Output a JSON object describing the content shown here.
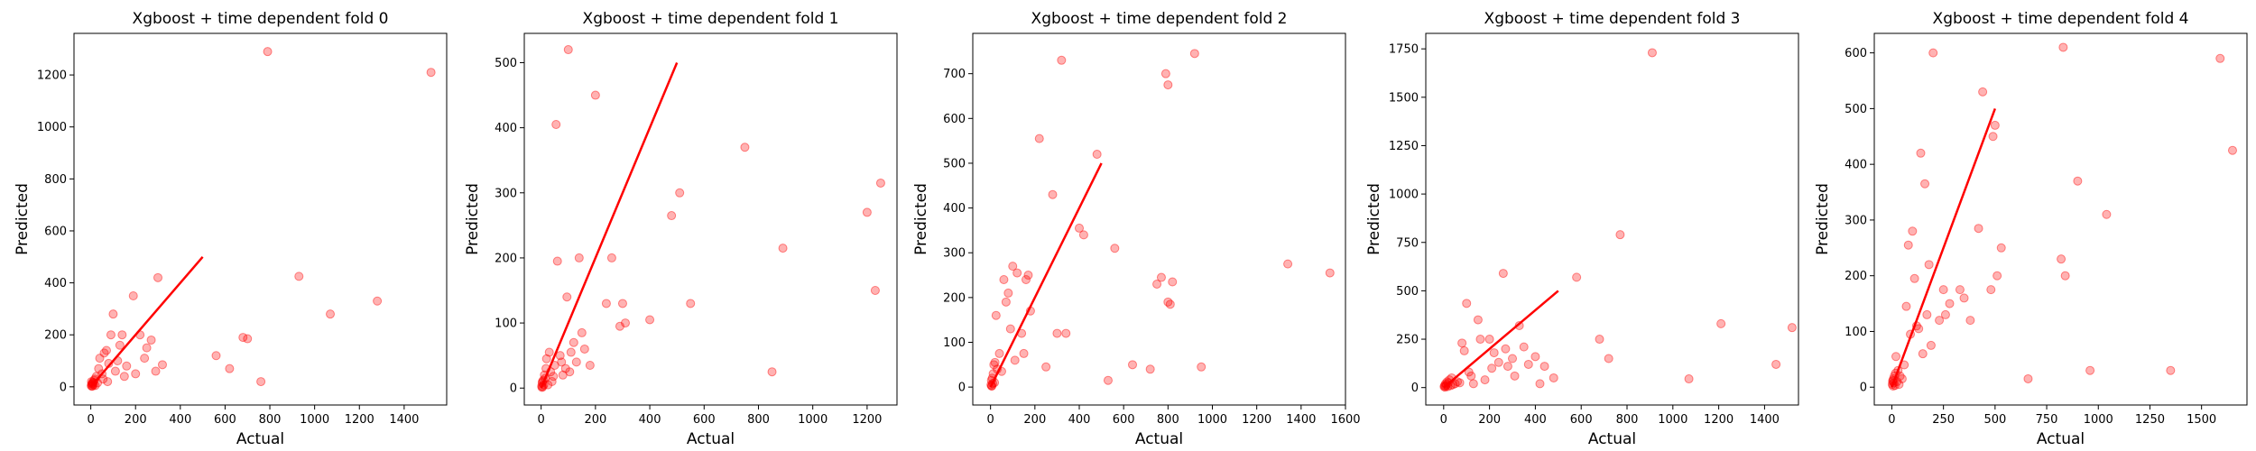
{
  "chart_data": [
    {
      "type": "scatter",
      "title": "Xgboost + time dependent fold 0",
      "xlabel": "Actual",
      "ylabel": "Predicted",
      "xlim": [
        -75,
        1590
      ],
      "ylim": [
        -70,
        1360
      ],
      "xticks": [
        0,
        200,
        400,
        600,
        800,
        1000,
        1200,
        1400
      ],
      "yticks": [
        0,
        200,
        400,
        600,
        800,
        1000,
        1200
      ],
      "point_color": "#ff0000",
      "line_color": "#ff0000",
      "reference_line": [
        [
          0,
          0
        ],
        [
          500,
          500
        ]
      ],
      "points": [
        [
          2,
          5
        ],
        [
          5,
          10
        ],
        [
          8,
          3
        ],
        [
          10,
          15
        ],
        [
          3,
          20
        ],
        [
          12,
          8
        ],
        [
          15,
          25
        ],
        [
          6,
          12
        ],
        [
          18,
          30
        ],
        [
          20,
          5
        ],
        [
          4,
          2
        ],
        [
          25,
          40
        ],
        [
          9,
          18
        ],
        [
          30,
          15
        ],
        [
          35,
          70
        ],
        [
          40,
          110
        ],
        [
          50,
          50
        ],
        [
          55,
          30
        ],
        [
          60,
          130
        ],
        [
          70,
          140
        ],
        [
          75,
          20
        ],
        [
          80,
          90
        ],
        [
          90,
          200
        ],
        [
          100,
          280
        ],
        [
          110,
          60
        ],
        [
          120,
          100
        ],
        [
          130,
          160
        ],
        [
          140,
          200
        ],
        [
          150,
          40
        ],
        [
          160,
          80
        ],
        [
          190,
          350
        ],
        [
          200,
          50
        ],
        [
          220,
          200
        ],
        [
          240,
          110
        ],
        [
          250,
          150
        ],
        [
          270,
          180
        ],
        [
          290,
          60
        ],
        [
          300,
          420
        ],
        [
          320,
          85
        ],
        [
          560,
          120
        ],
        [
          620,
          70
        ],
        [
          680,
          190
        ],
        [
          700,
          185
        ],
        [
          760,
          20
        ],
        [
          790,
          1290
        ],
        [
          930,
          425
        ],
        [
          1070,
          280
        ],
        [
          1280,
          330
        ],
        [
          1520,
          1210
        ]
      ]
    },
    {
      "type": "scatter",
      "title": "Xgboost + time dependent fold 1",
      "xlabel": "Actual",
      "ylabel": "Predicted",
      "xlim": [
        -62,
        1310
      ],
      "ylim": [
        -26,
        545
      ],
      "xticks": [
        0,
        200,
        400,
        600,
        800,
        1000,
        1200
      ],
      "yticks": [
        0,
        100,
        200,
        300,
        400,
        500
      ],
      "point_color": "#ff0000",
      "line_color": "#ff0000",
      "reference_line": [
        [
          0,
          0
        ],
        [
          500,
          500
        ]
      ],
      "points": [
        [
          2,
          3
        ],
        [
          4,
          8
        ],
        [
          6,
          2
        ],
        [
          8,
          12
        ],
        [
          10,
          5
        ],
        [
          12,
          20
        ],
        [
          15,
          15
        ],
        [
          18,
          30
        ],
        [
          5,
          10
        ],
        [
          20,
          45
        ],
        [
          3,
          1
        ],
        [
          25,
          5
        ],
        [
          30,
          55
        ],
        [
          35,
          25
        ],
        [
          40,
          10
        ],
        [
          45,
          18
        ],
        [
          50,
          35
        ],
        [
          55,
          405
        ],
        [
          60,
          195
        ],
        [
          70,
          50
        ],
        [
          75,
          40
        ],
        [
          80,
          20
        ],
        [
          90,
          30
        ],
        [
          95,
          140
        ],
        [
          100,
          520
        ],
        [
          105,
          25
        ],
        [
          110,
          55
        ],
        [
          120,
          70
        ],
        [
          130,
          40
        ],
        [
          140,
          200
        ],
        [
          150,
          85
        ],
        [
          160,
          60
        ],
        [
          180,
          35
        ],
        [
          200,
          450
        ],
        [
          240,
          130
        ],
        [
          260,
          200
        ],
        [
          290,
          95
        ],
        [
          300,
          130
        ],
        [
          310,
          100
        ],
        [
          400,
          105
        ],
        [
          480,
          265
        ],
        [
          510,
          300
        ],
        [
          550,
          130
        ],
        [
          750,
          370
        ],
        [
          850,
          25
        ],
        [
          890,
          215
        ],
        [
          1200,
          270
        ],
        [
          1230,
          150
        ],
        [
          1250,
          315
        ]
      ]
    },
    {
      "type": "scatter",
      "title": "Xgboost + time dependent fold 2",
      "xlabel": "Actual",
      "ylabel": "Predicted",
      "xlim": [
        -80,
        1600
      ],
      "ylim": [
        -40,
        790
      ],
      "xticks": [
        0,
        200,
        400,
        600,
        800,
        1000,
        1200,
        1400,
        1600
      ],
      "yticks": [
        0,
        100,
        200,
        300,
        400,
        500,
        600,
        700
      ],
      "point_color": "#ff0000",
      "line_color": "#ff0000",
      "reference_line": [
        [
          0,
          0
        ],
        [
          500,
          500
        ]
      ],
      "points": [
        [
          2,
          5
        ],
        [
          4,
          15
        ],
        [
          6,
          3
        ],
        [
          8,
          20
        ],
        [
          10,
          8
        ],
        [
          12,
          30
        ],
        [
          15,
          50
        ],
        [
          18,
          10
        ],
        [
          5,
          2
        ],
        [
          20,
          55
        ],
        [
          25,
          160
        ],
        [
          30,
          40
        ],
        [
          40,
          75
        ],
        [
          50,
          35
        ],
        [
          60,
          240
        ],
        [
          70,
          190
        ],
        [
          80,
          210
        ],
        [
          90,
          130
        ],
        [
          100,
          270
        ],
        [
          110,
          60
        ],
        [
          120,
          255
        ],
        [
          140,
          120
        ],
        [
          150,
          75
        ],
        [
          160,
          240
        ],
        [
          170,
          250
        ],
        [
          180,
          170
        ],
        [
          220,
          555
        ],
        [
          250,
          45
        ],
        [
          280,
          430
        ],
        [
          300,
          120
        ],
        [
          320,
          730
        ],
        [
          340,
          120
        ],
        [
          400,
          355
        ],
        [
          420,
          340
        ],
        [
          480,
          520
        ],
        [
          530,
          15
        ],
        [
          560,
          310
        ],
        [
          640,
          50
        ],
        [
          720,
          40
        ],
        [
          750,
          230
        ],
        [
          770,
          245
        ],
        [
          790,
          700
        ],
        [
          800,
          190
        ],
        [
          800,
          675
        ],
        [
          810,
          185
        ],
        [
          820,
          235
        ],
        [
          920,
          745
        ],
        [
          950,
          45
        ],
        [
          1340,
          275
        ],
        [
          1530,
          255
        ]
      ]
    },
    {
      "type": "scatter",
      "title": "Xgboost + time dependent fold 3",
      "xlabel": "Actual",
      "ylabel": "Predicted",
      "xlim": [
        -78,
        1548
      ],
      "ylim": [
        -90,
        1830
      ],
      "xticks": [
        0,
        200,
        400,
        600,
        800,
        1000,
        1200,
        1400
      ],
      "yticks": [
        0,
        250,
        500,
        750,
        1000,
        1250,
        1500,
        1750
      ],
      "point_color": "#ff0000",
      "line_color": "#ff0000",
      "reference_line": [
        [
          0,
          0
        ],
        [
          500,
          500
        ]
      ],
      "points": [
        [
          2,
          5
        ],
        [
          4,
          10
        ],
        [
          6,
          2
        ],
        [
          8,
          20
        ],
        [
          10,
          8
        ],
        [
          12,
          15
        ],
        [
          15,
          30
        ],
        [
          18,
          5
        ],
        [
          20,
          25
        ],
        [
          25,
          40
        ],
        [
          30,
          10
        ],
        [
          35,
          50
        ],
        [
          40,
          15
        ],
        [
          50,
          20
        ],
        [
          60,
          30
        ],
        [
          70,
          25
        ],
        [
          80,
          230
        ],
        [
          90,
          190
        ],
        [
          100,
          435
        ],
        [
          110,
          80
        ],
        [
          120,
          60
        ],
        [
          130,
          20
        ],
        [
          150,
          350
        ],
        [
          160,
          250
        ],
        [
          180,
          40
        ],
        [
          200,
          250
        ],
        [
          210,
          100
        ],
        [
          220,
          180
        ],
        [
          240,
          130
        ],
        [
          260,
          590
        ],
        [
          270,
          200
        ],
        [
          280,
          110
        ],
        [
          300,
          150
        ],
        [
          310,
          60
        ],
        [
          330,
          320
        ],
        [
          350,
          210
        ],
        [
          370,
          120
        ],
        [
          400,
          160
        ],
        [
          420,
          20
        ],
        [
          440,
          110
        ],
        [
          480,
          50
        ],
        [
          580,
          570
        ],
        [
          680,
          250
        ],
        [
          720,
          150
        ],
        [
          770,
          790
        ],
        [
          910,
          1730
        ],
        [
          1070,
          45
        ],
        [
          1210,
          330
        ],
        [
          1450,
          120
        ],
        [
          1520,
          310
        ]
      ]
    },
    {
      "type": "scatter",
      "title": "Xgboost + time dependent fold 4",
      "xlabel": "Actual",
      "ylabel": "Predicted",
      "xlim": [
        -85,
        1720
      ],
      "ylim": [
        -32,
        635
      ],
      "xticks": [
        0,
        250,
        500,
        750,
        1000,
        1250,
        1500
      ],
      "yticks": [
        0,
        100,
        200,
        300,
        400,
        500,
        600
      ],
      "point_color": "#ff0000",
      "line_color": "#ff0000",
      "reference_line": [
        [
          0,
          0
        ],
        [
          500,
          500
        ]
      ],
      "points": [
        [
          2,
          5
        ],
        [
          4,
          10
        ],
        [
          6,
          2
        ],
        [
          8,
          15
        ],
        [
          10,
          8
        ],
        [
          12,
          20
        ],
        [
          15,
          3
        ],
        [
          18,
          25
        ],
        [
          5,
          12
        ],
        [
          20,
          55
        ],
        [
          25,
          10
        ],
        [
          30,
          30
        ],
        [
          35,
          5
        ],
        [
          40,
          20
        ],
        [
          50,
          15
        ],
        [
          60,
          40
        ],
        [
          70,
          145
        ],
        [
          80,
          255
        ],
        [
          90,
          95
        ],
        [
          100,
          280
        ],
        [
          110,
          195
        ],
        [
          120,
          110
        ],
        [
          130,
          105
        ],
        [
          140,
          420
        ],
        [
          150,
          60
        ],
        [
          160,
          365
        ],
        [
          170,
          130
        ],
        [
          180,
          220
        ],
        [
          190,
          75
        ],
        [
          200,
          600
        ],
        [
          230,
          120
        ],
        [
          250,
          175
        ],
        [
          260,
          130
        ],
        [
          280,
          150
        ],
        [
          330,
          175
        ],
        [
          350,
          160
        ],
        [
          380,
          120
        ],
        [
          420,
          285
        ],
        [
          440,
          530
        ],
        [
          480,
          175
        ],
        [
          490,
          450
        ],
        [
          500,
          470
        ],
        [
          510,
          200
        ],
        [
          530,
          250
        ],
        [
          660,
          15
        ],
        [
          820,
          230
        ],
        [
          830,
          610
        ],
        [
          840,
          200
        ],
        [
          900,
          370
        ],
        [
          960,
          30
        ],
        [
          1040,
          310
        ],
        [
          1350,
          30
        ],
        [
          1590,
          590
        ],
        [
          1650,
          425
        ]
      ]
    }
  ]
}
